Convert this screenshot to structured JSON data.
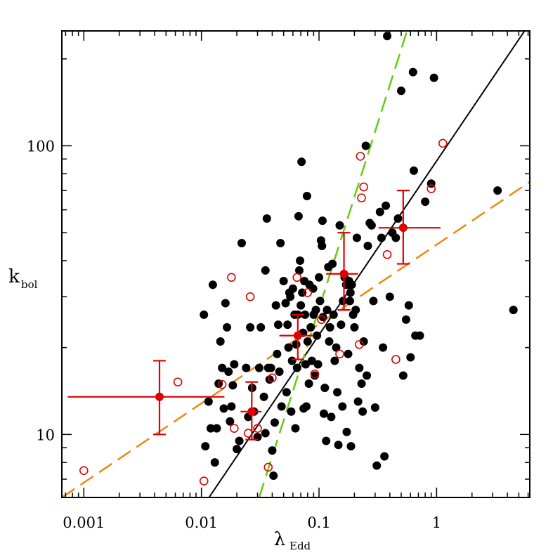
{
  "chart_data": {
    "type": "scatter",
    "xscale": "log",
    "yscale": "log",
    "xlim": [
      0.00065,
      6.2
    ],
    "ylim": [
      6.05,
      250
    ],
    "xlabel_main": "λ",
    "xlabel_sub": "Edd",
    "ylabel_main": "k",
    "ylabel_sub": "bol",
    "xticks": [
      {
        "value": 0.001,
        "label": "0.001"
      },
      {
        "value": 0.01,
        "label": "0.01"
      },
      {
        "value": 0.1,
        "label": "0.1"
      },
      {
        "value": 1,
        "label": "1"
      }
    ],
    "yticks": [
      {
        "value": 10,
        "label": "10"
      },
      {
        "value": 100,
        "label": "100"
      }
    ],
    "grid": false,
    "legend": "none",
    "colors": {
      "filled_points": "#000000",
      "open_points": "#e00000",
      "binned_points": "#e00000",
      "fit_line": "#000000",
      "green_dashed": "#66cc11",
      "orange_dashed": "#ee8811"
    },
    "series": [
      {
        "kind": "filled",
        "points": [
          [
            0.0105,
            26
          ],
          [
            0.0108,
            9.1
          ],
          [
            0.0115,
            13
          ],
          [
            0.012,
            10.5
          ],
          [
            0.0125,
            33
          ],
          [
            0.013,
            8
          ],
          [
            0.0135,
            10.5
          ],
          [
            0.014,
            15
          ],
          [
            0.0145,
            21
          ],
          [
            0.015,
            17
          ],
          [
            0.0155,
            12.3
          ],
          [
            0.016,
            28.5
          ],
          [
            0.0165,
            23.5
          ],
          [
            0.017,
            16.5
          ],
          [
            0.0175,
            11.1
          ],
          [
            0.018,
            12.5
          ],
          [
            0.0185,
            14.8
          ],
          [
            0.019,
            17.5
          ],
          [
            0.02,
            8.9
          ],
          [
            0.021,
            9.5
          ],
          [
            0.022,
            46
          ],
          [
            0.024,
            17
          ],
          [
            0.025,
            11.5
          ],
          [
            0.026,
            23.5
          ],
          [
            0.027,
            14.5
          ],
          [
            0.028,
            12
          ],
          [
            0.03,
            9.8
          ],
          [
            0.031,
            17
          ],
          [
            0.032,
            23.5
          ],
          [
            0.034,
            13.5
          ],
          [
            0.035,
            37
          ],
          [
            0.035,
            10.1
          ],
          [
            0.036,
            56
          ],
          [
            0.037,
            17
          ],
          [
            0.038,
            15.5
          ],
          [
            0.039,
            17
          ],
          [
            0.04,
            8.8
          ],
          [
            0.041,
            7.2
          ],
          [
            0.042,
            11
          ],
          [
            0.043,
            28
          ],
          [
            0.044,
            19
          ],
          [
            0.045,
            24
          ],
          [
            0.046,
            16.5
          ],
          [
            0.047,
            46
          ],
          [
            0.048,
            12.5
          ],
          [
            0.05,
            34
          ],
          [
            0.052,
            28.5
          ],
          [
            0.053,
            14
          ],
          [
            0.054,
            24
          ],
          [
            0.055,
            20
          ],
          [
            0.056,
            31
          ],
          [
            0.057,
            30
          ],
          [
            0.058,
            12
          ],
          [
            0.059,
            18
          ],
          [
            0.06,
            32
          ],
          [
            0.062,
            26
          ],
          [
            0.063,
            10.5
          ],
          [
            0.064,
            20.5
          ],
          [
            0.065,
            17
          ],
          [
            0.066,
            26
          ],
          [
            0.067,
            57
          ],
          [
            0.068,
            37
          ],
          [
            0.069,
            40
          ],
          [
            0.07,
            28
          ],
          [
            0.071,
            88
          ],
          [
            0.072,
            31
          ],
          [
            0.073,
            22.5
          ],
          [
            0.074,
            12.3
          ],
          [
            0.075,
            34
          ],
          [
            0.076,
            26
          ],
          [
            0.077,
            17.5
          ],
          [
            0.078,
            12.5
          ],
          [
            0.079,
            67
          ],
          [
            0.08,
            21
          ],
          [
            0.082,
            15
          ],
          [
            0.083,
            33
          ],
          [
            0.085,
            23.5
          ],
          [
            0.087,
            18
          ],
          [
            0.089,
            32
          ],
          [
            0.09,
            26
          ],
          [
            0.092,
            16
          ],
          [
            0.094,
            27
          ],
          [
            0.096,
            22
          ],
          [
            0.098,
            17.5
          ],
          [
            0.1,
            35
          ],
          [
            0.102,
            29
          ],
          [
            0.104,
            47
          ],
          [
            0.106,
            45
          ],
          [
            0.107,
            55
          ],
          [
            0.108,
            25.5
          ],
          [
            0.11,
            11.8
          ],
          [
            0.112,
            14.5
          ],
          [
            0.115,
            9.5
          ],
          [
            0.117,
            27
          ],
          [
            0.12,
            38
          ],
          [
            0.122,
            21
          ],
          [
            0.124,
            23.5
          ],
          [
            0.127,
            11.5
          ],
          [
            0.13,
            39
          ],
          [
            0.133,
            26
          ],
          [
            0.136,
            18
          ],
          [
            0.14,
            20
          ],
          [
            0.143,
            14
          ],
          [
            0.146,
            9.2
          ],
          [
            0.15,
            53
          ],
          [
            0.154,
            24
          ],
          [
            0.158,
            12.5
          ],
          [
            0.16,
            29
          ],
          [
            0.165,
            35
          ],
          [
            0.17,
            33
          ],
          [
            0.172,
            10.2
          ],
          [
            0.175,
            33
          ],
          [
            0.177,
            19
          ],
          [
            0.18,
            34
          ],
          [
            0.183,
            29
          ],
          [
            0.185,
            31
          ],
          [
            0.187,
            9.1
          ],
          [
            0.19,
            33
          ],
          [
            0.195,
            26
          ],
          [
            0.2,
            23.5
          ],
          [
            0.205,
            27
          ],
          [
            0.21,
            48
          ],
          [
            0.215,
            13
          ],
          [
            0.22,
            17
          ],
          [
            0.23,
            15
          ],
          [
            0.235,
            12
          ],
          [
            0.24,
            21
          ],
          [
            0.25,
            100
          ],
          [
            0.255,
            16
          ],
          [
            0.26,
            45
          ],
          [
            0.27,
            54
          ],
          [
            0.28,
            53
          ],
          [
            0.29,
            29
          ],
          [
            0.3,
            12.4
          ],
          [
            0.31,
            7.8
          ],
          [
            0.33,
            59
          ],
          [
            0.34,
            48
          ],
          [
            0.35,
            20
          ],
          [
            0.36,
            8.4
          ],
          [
            0.37,
            62
          ],
          [
            0.38,
            240
          ],
          [
            0.4,
            30
          ],
          [
            0.42,
            50
          ],
          [
            0.45,
            48
          ],
          [
            0.47,
            56
          ],
          [
            0.5,
            155
          ],
          [
            0.52,
            16
          ],
          [
            0.55,
            25
          ],
          [
            0.58,
            28
          ],
          [
            0.6,
            18.5
          ],
          [
            0.63,
            180
          ],
          [
            0.64,
            82
          ],
          [
            0.66,
            22
          ],
          [
            0.72,
            22
          ],
          [
            0.8,
            64
          ],
          [
            0.9,
            74
          ],
          [
            0.95,
            172
          ],
          [
            3.3,
            70
          ],
          [
            4.5,
            27
          ]
        ]
      },
      {
        "kind": "open",
        "points": [
          [
            0.001,
            7.5
          ],
          [
            0.0063,
            15.2
          ],
          [
            0.0105,
            6.9
          ],
          [
            0.015,
            14.9
          ],
          [
            0.018,
            35
          ],
          [
            0.019,
            10.5
          ],
          [
            0.025,
            10.1
          ],
          [
            0.026,
            30
          ],
          [
            0.03,
            10.5
          ],
          [
            0.037,
            7.7
          ],
          [
            0.04,
            15.7
          ],
          [
            0.065,
            35
          ],
          [
            0.08,
            31
          ],
          [
            0.092,
            16.2
          ],
          [
            0.105,
            25
          ],
          [
            0.15,
            19
          ],
          [
            0.22,
            20.5
          ],
          [
            0.225,
            92
          ],
          [
            0.23,
            66
          ],
          [
            0.24,
            72
          ],
          [
            0.38,
            42
          ],
          [
            0.45,
            18.2
          ],
          [
            0.9,
            71
          ],
          [
            1.13,
            102
          ]
        ]
      },
      {
        "kind": "binned",
        "points": [
          {
            "x": 0.0044,
            "y": 13.5,
            "xerr": [
              0.00073,
              0.0157
            ],
            "yerr": [
              10,
              18
            ]
          },
          {
            "x": 0.0268,
            "y": 12,
            "xerr": [
              0.0215,
              0.0325
            ],
            "yerr": [
              9.6,
              15.2
            ]
          },
          {
            "x": 0.066,
            "y": 22,
            "xerr": [
              0.046,
              0.09
            ],
            "yerr": [
              18.2,
              26
            ]
          },
          {
            "x": 0.163,
            "y": 36,
            "xerr": [
              0.115,
              0.215
            ],
            "yerr": [
              27,
              50
            ]
          },
          {
            "x": 0.52,
            "y": 52,
            "xerr": [
              0.32,
              1.08
            ],
            "yerr": [
              39,
              70
            ]
          }
        ]
      }
    ],
    "lines": [
      {
        "kind": "solid",
        "points": [
          [
            0.0116,
            6.05
          ],
          [
            5.6,
            250
          ]
        ]
      },
      {
        "kind": "dashed-green",
        "points": [
          [
            0.031,
            6.05
          ],
          [
            0.56,
            250
          ]
        ]
      },
      {
        "kind": "dashed-orange",
        "points": [
          [
            0.00065,
            6.05
          ],
          [
            6.2,
            75
          ]
        ]
      }
    ]
  }
}
